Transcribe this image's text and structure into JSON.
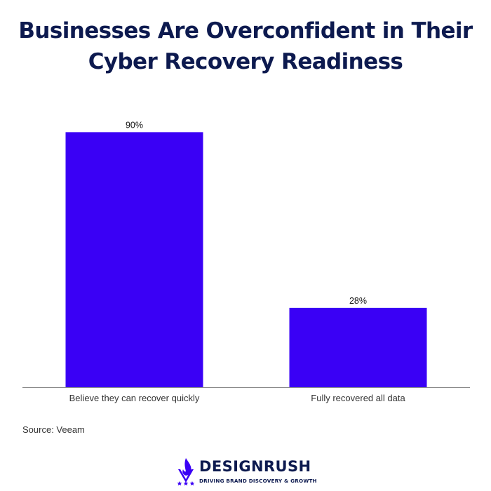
{
  "title": {
    "line1": "Businesses Are Overconfident in Their",
    "line2": "Cyber Recovery Readiness"
  },
  "source": "Source: Veeam",
  "brand": {
    "name": "DESIGNRUSH",
    "tagline": "DRIVING BRAND DISCOVERY & GROWTH"
  },
  "colors": {
    "bar": "#3a00f5",
    "title": "#0d1a4f",
    "axis": "#8a8a8a"
  },
  "chart_data": {
    "type": "bar",
    "title": "Businesses Are Overconfident in Their Cyber Recovery Readiness",
    "categories": [
      "Believe they can recover quickly",
      "Fully recovered all data"
    ],
    "values": [
      90,
      28
    ],
    "value_labels": [
      "90%",
      "28%"
    ],
    "xlabel": "",
    "ylabel": "",
    "ylim": [
      0,
      100
    ],
    "grid": false,
    "legend": "none"
  }
}
